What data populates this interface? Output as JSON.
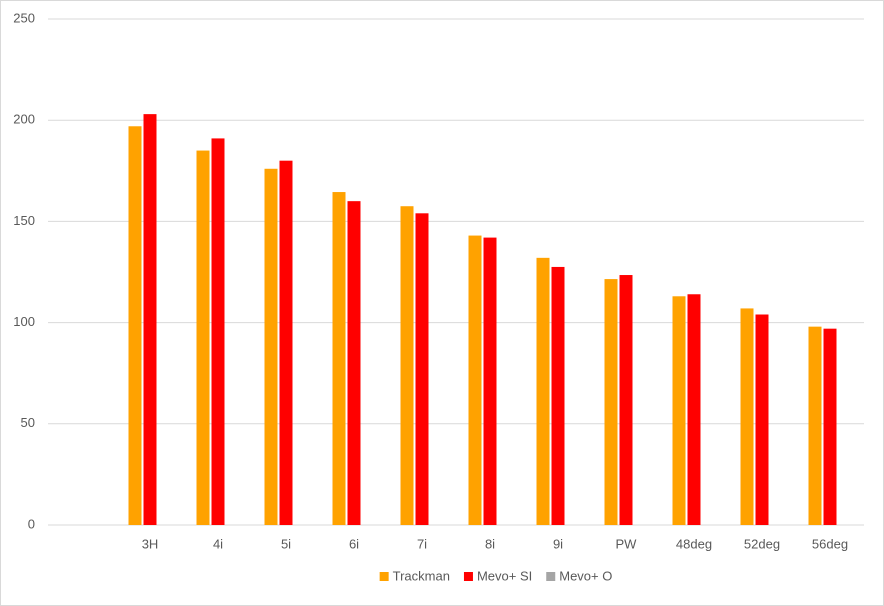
{
  "chart_data": {
    "type": "bar",
    "categories": [
      null,
      "3H",
      "4i",
      "5i",
      "6i",
      "7i",
      "8i",
      "9i",
      "PW",
      "48deg",
      "52deg",
      "56deg"
    ],
    "series": [
      {
        "name": "Trackman",
        "color": "#ffa200",
        "values": [
          null,
          197,
          185,
          176,
          164.5,
          157.5,
          143,
          132,
          121.5,
          113,
          107,
          98
        ]
      },
      {
        "name": "Mevo+ SI",
        "color": "#ff0000",
        "values": [
          null,
          203,
          191,
          180,
          160,
          154,
          142,
          127.5,
          123.5,
          114,
          104,
          97
        ]
      },
      {
        "name": "Mevo+ O",
        "color": "#a5a5a5",
        "values": [
          null,
          null,
          null,
          null,
          null,
          null,
          null,
          null,
          null,
          null,
          null,
          null
        ]
      }
    ],
    "ylim": [
      0,
      250
    ],
    "yticks": [
      0,
      50,
      100,
      150,
      200,
      250
    ],
    "grid": true,
    "legend": "bottom"
  }
}
